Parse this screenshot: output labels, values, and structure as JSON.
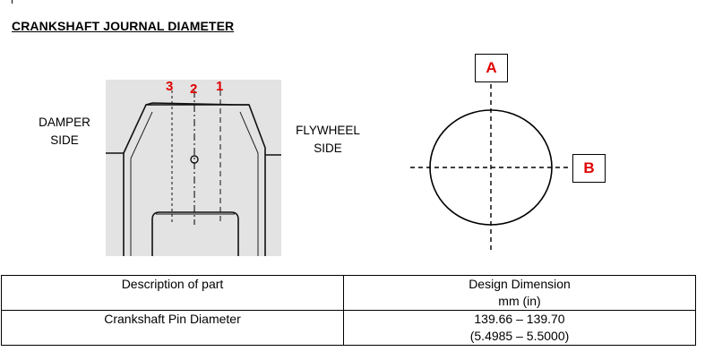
{
  "document": {
    "title": "CRANKSHAFT JOURNAL DIAMETER"
  },
  "diagram_left": {
    "left_label_line1": "DAMPER",
    "left_label_line2": "SIDE",
    "right_label_line1": "FLYWHEEL",
    "right_label_line2": "SIDE",
    "position_labels": [
      "3",
      "2",
      "1"
    ],
    "label_color": "#e00000"
  },
  "diagram_right": {
    "axis_a": "A",
    "axis_b": "B"
  },
  "table": {
    "header": {
      "description": "Description of part",
      "dimension_line1": "Design Dimension",
      "dimension_line2": "mm (in)"
    },
    "rows": [
      {
        "description": "Crankshaft Pin Diameter",
        "dimension_mm": "139.66 – 139.70",
        "dimension_in": "(5.4985 – 5.5000)"
      }
    ]
  }
}
